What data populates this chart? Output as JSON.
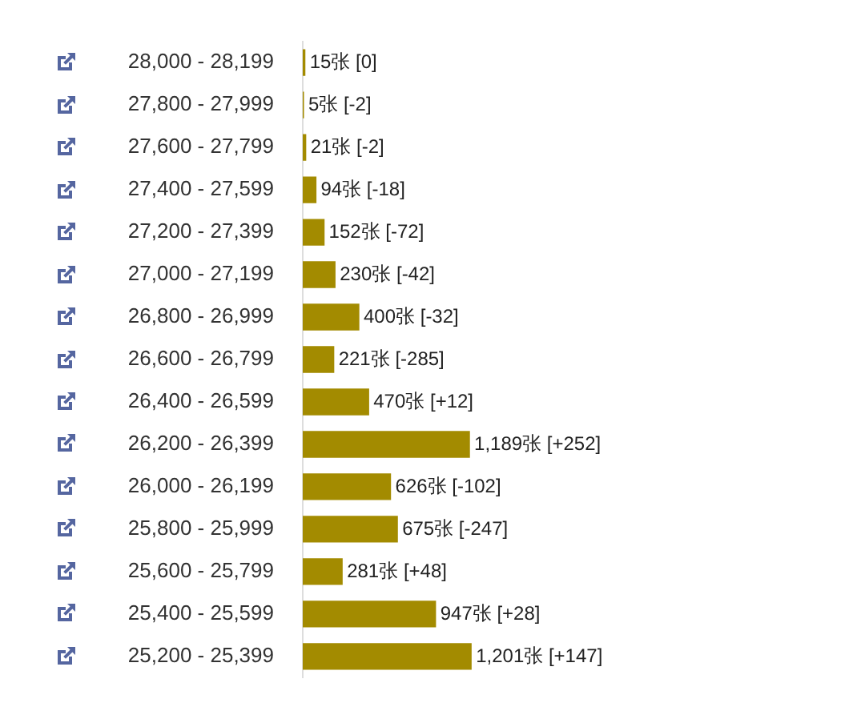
{
  "chart_data": {
    "type": "bar",
    "orientation": "horizontal",
    "categories": [
      "28,000 - 28,199",
      "27,800 - 27,999",
      "27,600 - 27,799",
      "27,400 - 27,599",
      "27,200 - 27,399",
      "27,000 - 27,199",
      "26,800 - 26,999",
      "26,600 - 26,799",
      "26,400 - 26,599",
      "26,200 - 26,399",
      "26,000 - 26,199",
      "25,800 - 25,999",
      "25,600 - 25,799",
      "25,400 - 25,599",
      "25,200 - 25,399"
    ],
    "values": [
      15,
      5,
      21,
      94,
      152,
      230,
      400,
      221,
      470,
      1189,
      626,
      675,
      281,
      947,
      1201
    ],
    "value_labels": [
      "15张 [0]",
      "5张 [-2]",
      "21张 [-2]",
      "94张 [-18]",
      "152张 [-72]",
      "230张 [-42]",
      "400张 [-32]",
      "221张 [-285]",
      "470张 [+12]",
      "1,189张 [+252]",
      "626张 [-102]",
      "675张 [-247]",
      "281张 [+48]",
      "947张 [+28]",
      "1,201张 [+147]"
    ],
    "color": "#a38b00",
    "grid": false,
    "tick_labels": "y"
  }
}
